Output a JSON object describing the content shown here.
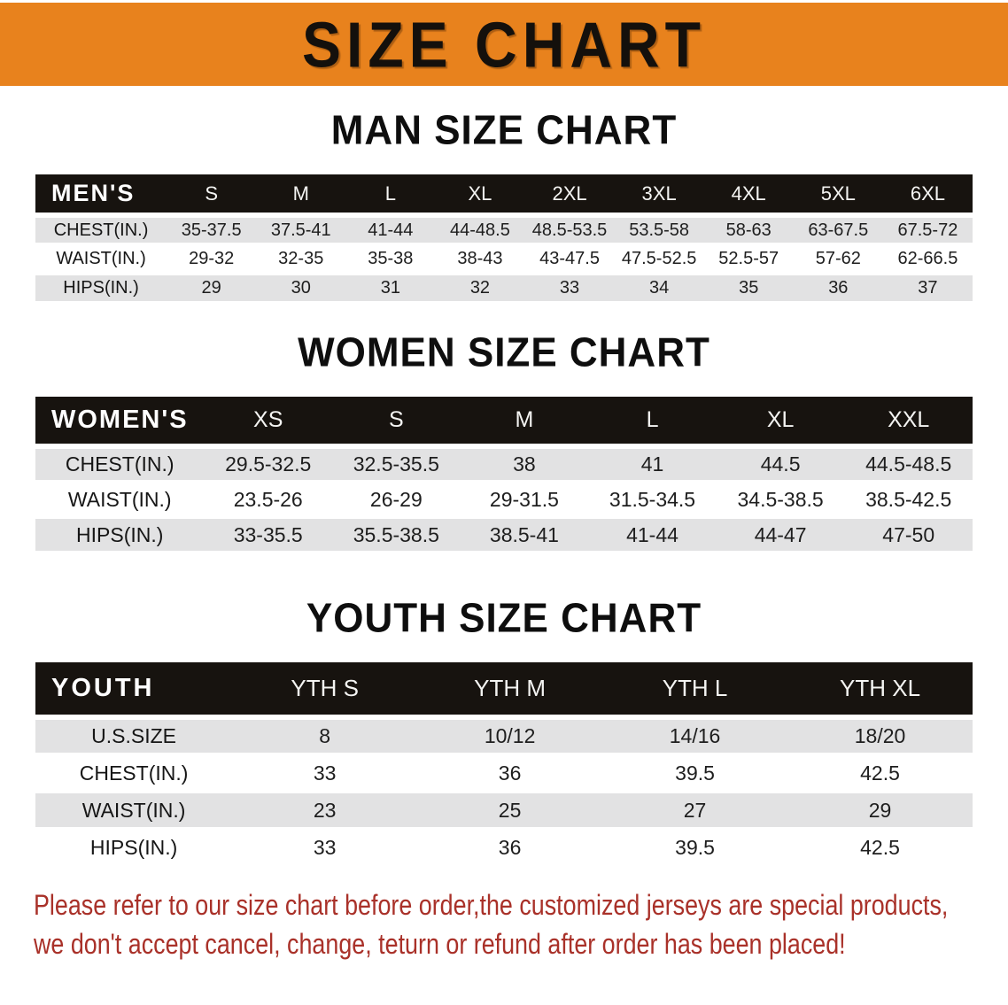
{
  "banner": {
    "title": "SIZE CHART",
    "bg_color": "#E8821D"
  },
  "sections": [
    {
      "heading": "MAN SIZE CHART",
      "table": {
        "label": "MEN'S",
        "columns": [
          "S",
          "M",
          "L",
          "XL",
          "2XL",
          "3XL",
          "4XL",
          "5XL",
          "6XL"
        ],
        "rows": [
          {
            "label": "CHEST(IN.)",
            "values": [
              "35-37.5",
              "37.5-41",
              "41-44",
              "44-48.5",
              "48.5-53.5",
              "53.5-58",
              "58-63",
              "63-67.5",
              "67.5-72"
            ]
          },
          {
            "label": "WAIST(IN.)",
            "values": [
              "29-32",
              "32-35",
              "35-38",
              "38-43",
              "43-47.5",
              "47.5-52.5",
              "52.5-57",
              "57-62",
              "62-66.5"
            ]
          },
          {
            "label": "HIPS(IN.)",
            "values": [
              "29",
              "30",
              "31",
              "32",
              "33",
              "34",
              "35",
              "36",
              "37"
            ]
          }
        ]
      }
    },
    {
      "heading": "WOMEN SIZE CHART",
      "table": {
        "label": "WOMEN'S",
        "columns": [
          "XS",
          "S",
          "M",
          "L",
          "XL",
          "XXL"
        ],
        "rows": [
          {
            "label": "CHEST(IN.)",
            "values": [
              "29.5-32.5",
              "32.5-35.5",
              "38",
              "41",
              "44.5",
              "44.5-48.5"
            ]
          },
          {
            "label": "WAIST(IN.)",
            "values": [
              "23.5-26",
              "26-29",
              "29-31.5",
              "31.5-34.5",
              "34.5-38.5",
              "38.5-42.5"
            ]
          },
          {
            "label": "HIPS(IN.)",
            "values": [
              "33-35.5",
              "35.5-38.5",
              "38.5-41",
              "41-44",
              "44-47",
              "47-50"
            ]
          }
        ]
      }
    },
    {
      "heading": "YOUTH SIZE CHART",
      "table": {
        "label": "YOUTH",
        "columns": [
          "YTH S",
          "YTH M",
          "YTH L",
          "YTH XL"
        ],
        "rows": [
          {
            "label": "U.S.SIZE",
            "values": [
              "8",
              "10/12",
              "14/16",
              "18/20"
            ]
          },
          {
            "label": "CHEST(IN.)",
            "values": [
              "33",
              "36",
              "39.5",
              "42.5"
            ]
          },
          {
            "label": "WAIST(IN.)",
            "values": [
              "23",
              "25",
              "27",
              "29"
            ]
          },
          {
            "label": "HIPS(IN.)",
            "values": [
              "33",
              "36",
              "39.5",
              "42.5"
            ]
          }
        ]
      }
    }
  ],
  "disclaimer": {
    "line1": "Please refer to our size chart before order,the customized jerseys are special products,",
    "line2": "we don't accept cancel, change, teturn or refund after order has been placed!",
    "color": "#A93129"
  },
  "colors": {
    "banner-orange": "#E8821D",
    "header-black": "#17130F",
    "row-gray": "#E2E2E3",
    "disclaimer-red": "#A93129"
  }
}
